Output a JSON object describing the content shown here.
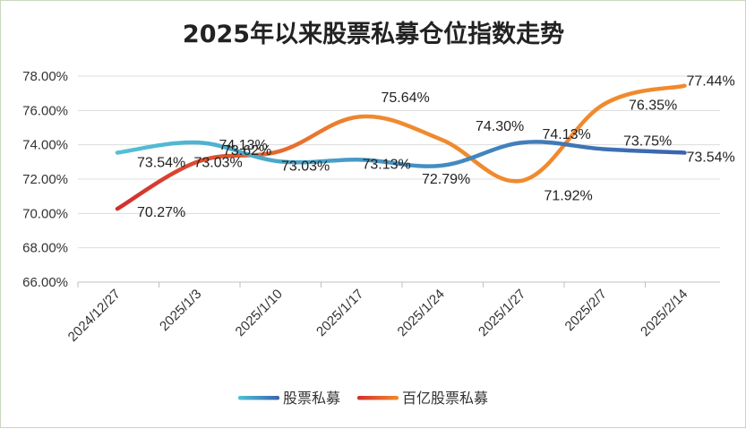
{
  "chart_data": {
    "type": "line",
    "title": "2025年以来股票私募仓位指数走势",
    "categories": [
      "2024/12/27",
      "2025/1/3",
      "2025/1/10",
      "2025/1/17",
      "2025/1/24",
      "2025/1/27",
      "2025/2/7",
      "2025/2/14"
    ],
    "ylim": [
      66,
      78
    ],
    "yticks": [
      "66.00%",
      "68.00%",
      "70.00%",
      "72.00%",
      "74.00%",
      "76.00%",
      "78.00%"
    ],
    "grid": true,
    "legend_position": "bottom",
    "series": [
      {
        "name": "股票私募",
        "values": [
          73.54,
          74.13,
          73.03,
          73.13,
          72.79,
          74.13,
          73.75,
          73.54
        ],
        "labels": [
          "73.54%",
          "74.13%",
          "73.03%",
          "73.13%",
          "72.79%",
          "74.13%",
          "73.75%",
          "73.54%"
        ],
        "color_start": "#52c1d4",
        "color_end": "#3a64b0"
      },
      {
        "name": "百亿股票私募",
        "values": [
          70.27,
          73.03,
          73.62,
          75.64,
          74.3,
          71.92,
          76.35,
          77.44
        ],
        "labels": [
          "70.27%",
          "73.03%",
          "73.62%",
          "75.64%",
          "74.30%",
          "71.92%",
          "76.35%",
          "77.44%"
        ],
        "color_start": "#d22f2f",
        "color_end": "#f08a2e"
      }
    ]
  }
}
